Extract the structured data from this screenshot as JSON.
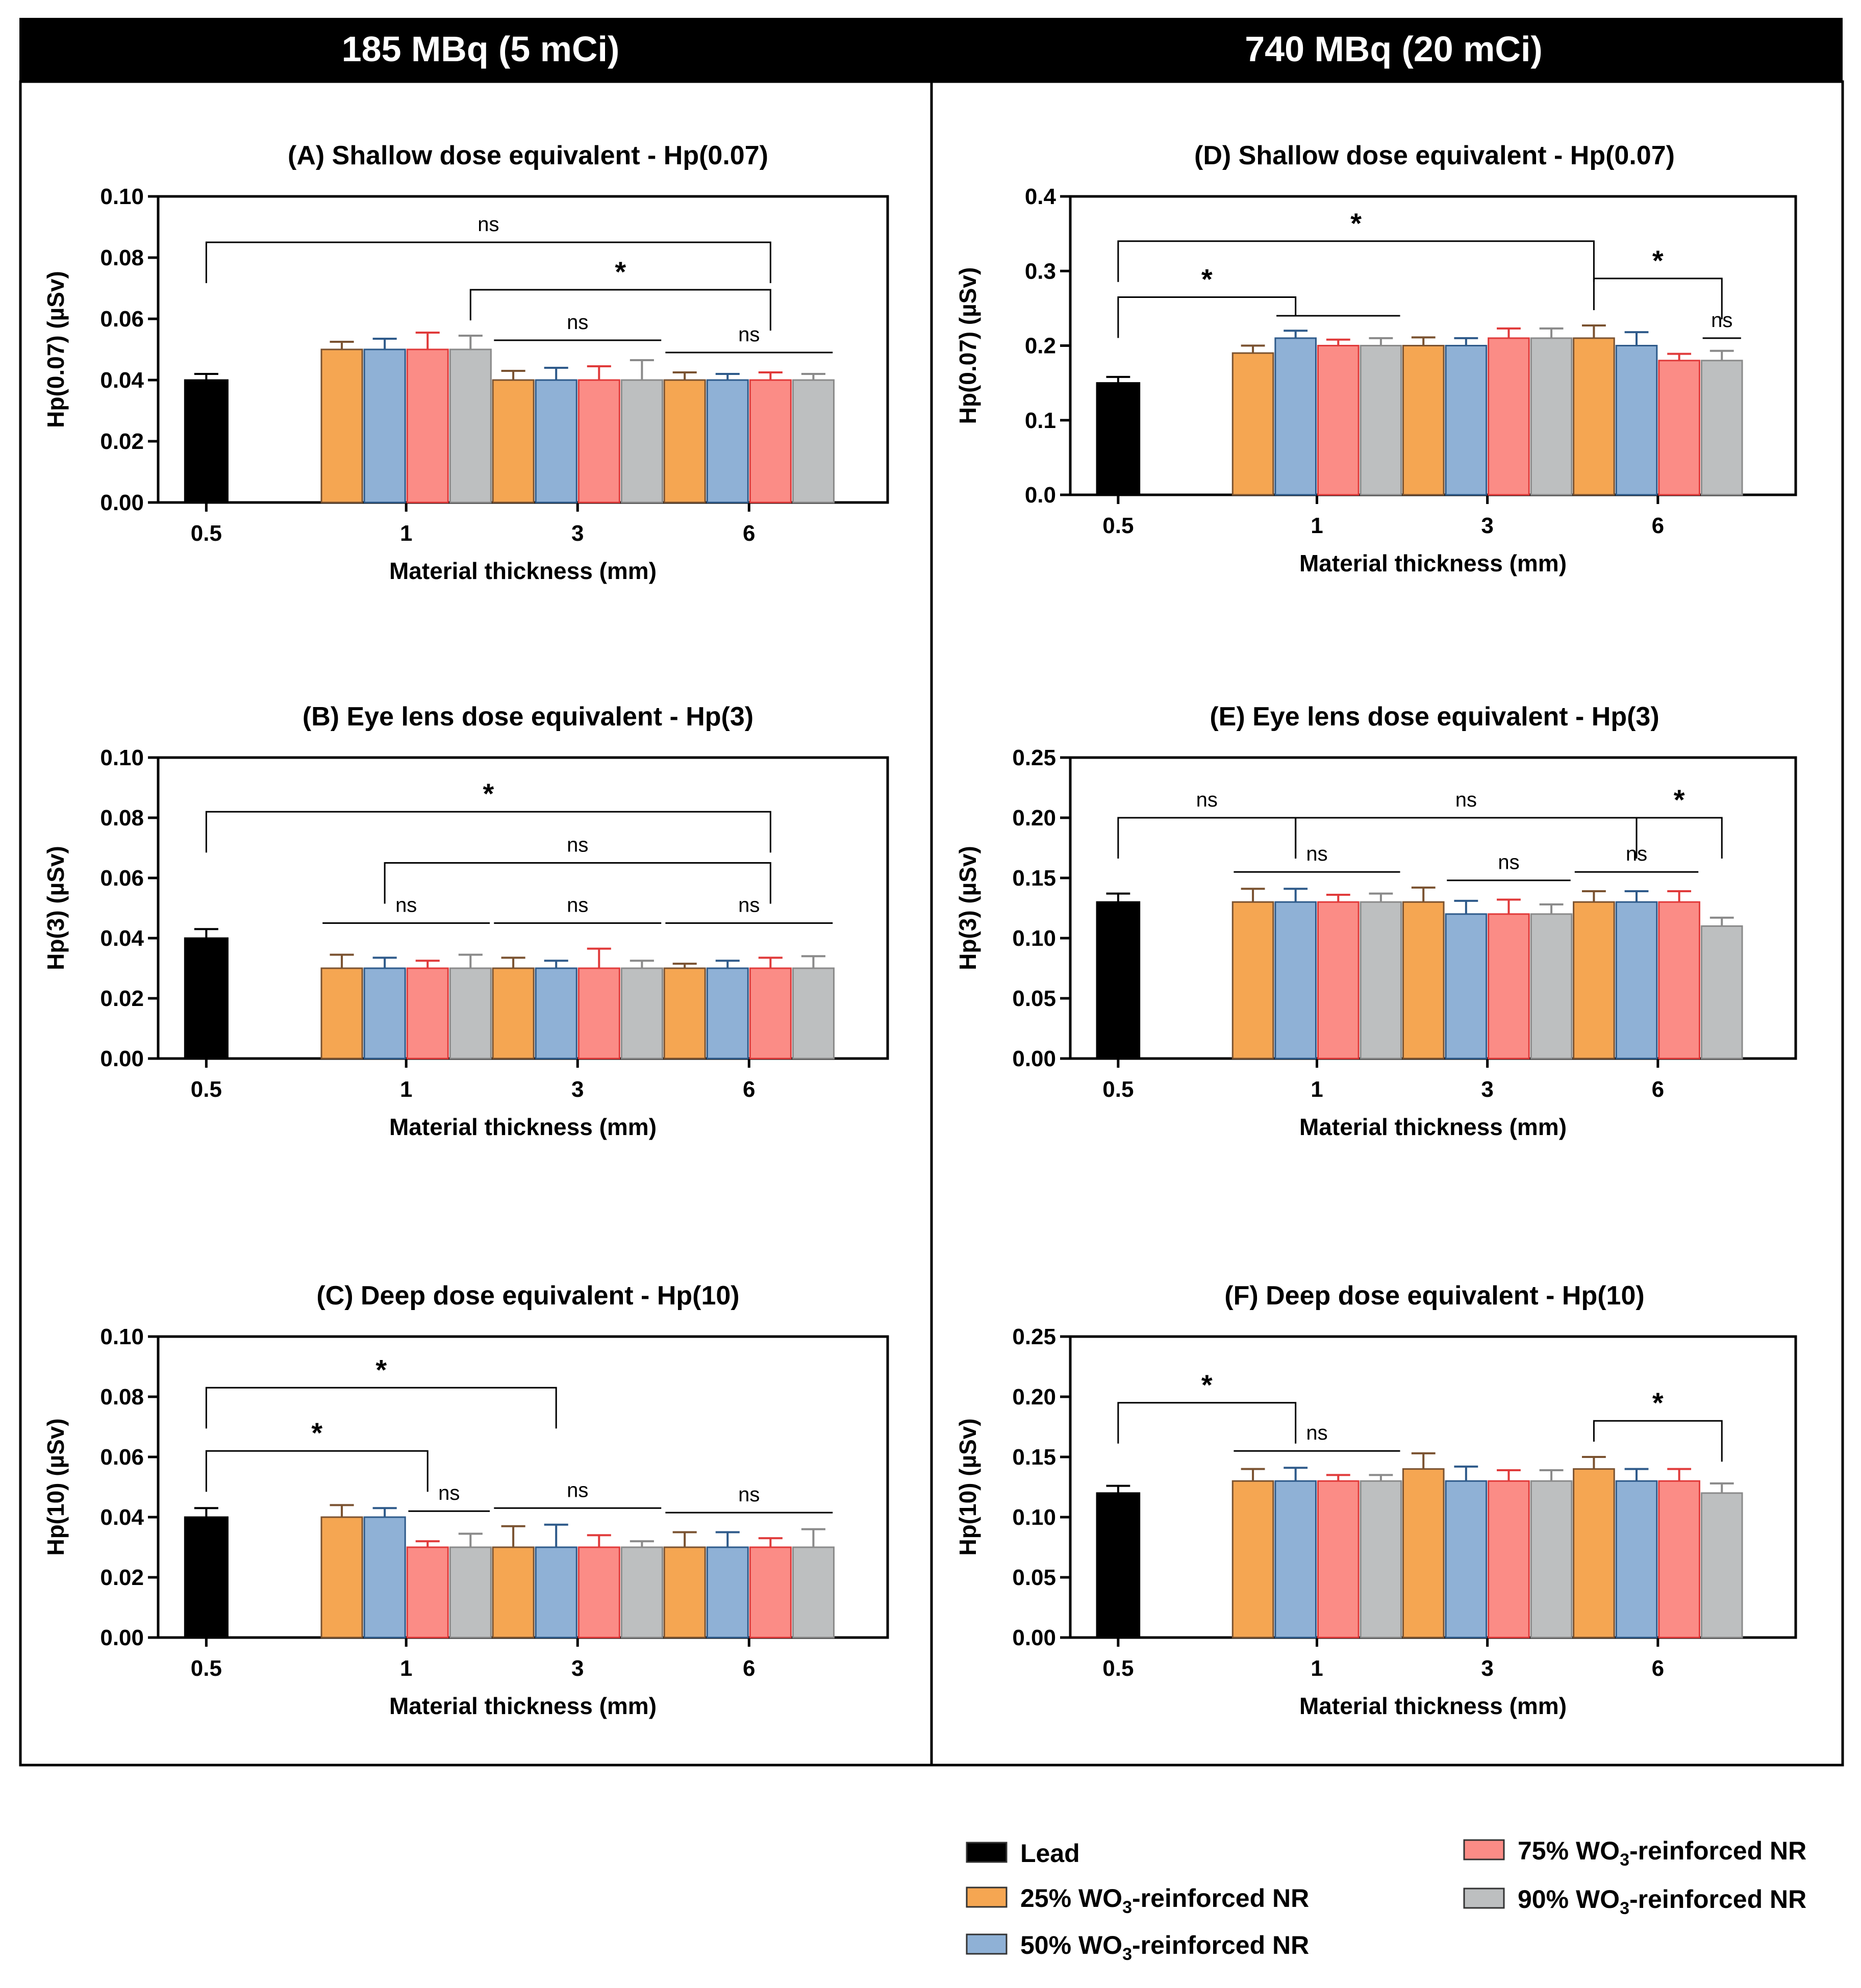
{
  "headers": [
    "185 MBq (5 mCi)",
    "740 MBq (20 mCi)"
  ],
  "colors": {
    "lead": "#000000",
    "wo3_25": "#F5A652",
    "wo3_50": "#8FB1D6",
    "wo3_75": "#FB8C86",
    "wo3_90": "#BDBFC0",
    "err_25": "#7A5230",
    "err_50": "#2E5A8A",
    "err_75": "#E03A3A",
    "err_90": "#8A8A8A"
  },
  "legend": [
    {
      "name": "Lead",
      "pre": "Lead",
      "sub": "",
      "post": "",
      "color": "#000000"
    },
    {
      "name": "25% WO3-reinforced NR",
      "pre": "25% WO",
      "sub": "3",
      "post": "-reinforced NR",
      "color": "#F5A652"
    },
    {
      "name": "50% WO3-reinforced NR",
      "pre": "50% WO",
      "sub": "3",
      "post": "-reinforced NR",
      "color": "#8FB1D6"
    },
    {
      "name": "75% WO3-reinforced NR",
      "pre": "75% WO",
      "sub": "3",
      "post": "-reinforced NR",
      "color": "#FB8C86"
    },
    {
      "name": "90% WO3-reinforced NR",
      "pre": "90% WO",
      "sub": "3",
      "post": "-reinforced NR",
      "color": "#BDBFC0"
    }
  ],
  "chart_data": [
    {
      "id": "A",
      "type": "bar",
      "title": "(A) Shallow dose equivalent - Hp(0.07)",
      "ylabel": "Hp(0.07) (µSv)",
      "xlabel": "Material thickness (mm)",
      "ylim": [
        0,
        0.1
      ],
      "yticks": [
        "0.00",
        "0.02",
        "0.04",
        "0.06",
        "0.08",
        "0.10"
      ],
      "xticks": [
        "0.5",
        "1",
        "3",
        "6"
      ],
      "lead": {
        "value": 0.04,
        "err": 0.002
      },
      "groups": [
        {
          "values": [
            0.05,
            0.05,
            0.05,
            0.05
          ],
          "errs": [
            0.0025,
            0.0035,
            0.0055,
            0.0045
          ]
        },
        {
          "values": [
            0.04,
            0.04,
            0.04,
            0.04
          ],
          "errs": [
            0.003,
            0.004,
            0.0045,
            0.0065
          ]
        },
        {
          "values": [
            0.04,
            0.04,
            0.04,
            0.04
          ],
          "errs": [
            0.0025,
            0.002,
            0.0025,
            0.002
          ]
        }
      ],
      "sig": [
        {
          "label": "ns",
          "from": "lead",
          "to": [
            2,
            2
          ],
          "yval": 0.085
        },
        {
          "label": "*",
          "from": [
            0,
            3
          ],
          "to": [
            2,
            2
          ],
          "yval": 0.0695
        },
        {
          "label": "ns",
          "line": [
            1,
            0,
            1,
            3
          ],
          "yval": 0.053
        },
        {
          "label": "ns",
          "line": [
            2,
            0,
            2,
            3
          ],
          "yval": 0.049
        }
      ]
    },
    {
      "id": "B",
      "type": "bar",
      "title": "(B) Eye lens dose equivalent - Hp(3)",
      "ylabel": "Hp(3) (µSv)",
      "xlabel": "Material thickness (mm)",
      "ylim": [
        0,
        0.1
      ],
      "yticks": [
        "0.00",
        "0.02",
        "0.04",
        "0.06",
        "0.08",
        "0.10"
      ],
      "xticks": [
        "0.5",
        "1",
        "3",
        "6"
      ],
      "lead": {
        "value": 0.04,
        "err": 0.003
      },
      "groups": [
        {
          "values": [
            0.03,
            0.03,
            0.03,
            0.03
          ],
          "errs": [
            0.0045,
            0.0035,
            0.0025,
            0.0045
          ]
        },
        {
          "values": [
            0.03,
            0.03,
            0.03,
            0.03
          ],
          "errs": [
            0.0035,
            0.0025,
            0.0065,
            0.0025
          ]
        },
        {
          "values": [
            0.03,
            0.03,
            0.03,
            0.03
          ],
          "errs": [
            0.0015,
            0.0025,
            0.0035,
            0.004
          ]
        }
      ],
      "sig": [
        {
          "label": "*",
          "from": "lead",
          "to": [
            2,
            2
          ],
          "yval": 0.082
        },
        {
          "label": "ns",
          "from": [
            0,
            1
          ],
          "to": [
            2,
            2
          ],
          "yval": 0.065
        },
        {
          "label": "ns",
          "line": [
            0,
            0,
            0,
            3
          ],
          "yval": 0.045
        },
        {
          "label": "ns",
          "line": [
            1,
            0,
            1,
            3
          ],
          "yval": 0.045
        },
        {
          "label": "ns",
          "line": [
            2,
            0,
            2,
            3
          ],
          "yval": 0.045
        }
      ]
    },
    {
      "id": "C",
      "type": "bar",
      "title": "(C) Deep dose equivalent - Hp(10)",
      "ylabel": "Hp(10) (µSv)",
      "xlabel": "Material thickness (mm)",
      "ylim": [
        0,
        0.1
      ],
      "yticks": [
        "0.00",
        "0.02",
        "0.04",
        "0.06",
        "0.08",
        "0.10"
      ],
      "xticks": [
        "0.5",
        "1",
        "3",
        "6"
      ],
      "lead": {
        "value": 0.04,
        "err": 0.003
      },
      "groups": [
        {
          "values": [
            0.04,
            0.04,
            0.03,
            0.03
          ],
          "errs": [
            0.004,
            0.003,
            0.002,
            0.0045
          ]
        },
        {
          "values": [
            0.03,
            0.03,
            0.03,
            0.03
          ],
          "errs": [
            0.007,
            0.0075,
            0.004,
            0.002
          ]
        },
        {
          "values": [
            0.03,
            0.03,
            0.03,
            0.03
          ],
          "errs": [
            0.005,
            0.005,
            0.003,
            0.006
          ]
        }
      ],
      "sig": [
        {
          "label": "*",
          "from": "lead",
          "to": [
            1,
            1
          ],
          "yval": 0.083
        },
        {
          "label": "*",
          "from": "lead",
          "to": [
            0,
            2
          ],
          "yval": 0.062
        },
        {
          "label": "ns",
          "line": [
            0,
            2,
            0,
            3
          ],
          "yval": 0.042
        },
        {
          "label": "ns",
          "line": [
            1,
            0,
            1,
            3
          ],
          "yval": 0.043
        },
        {
          "label": "ns",
          "line": [
            2,
            0,
            2,
            3
          ],
          "yval": 0.0415
        }
      ]
    },
    {
      "id": "D",
      "type": "bar",
      "title": "(D) Shallow dose equivalent - Hp(0.07)",
      "ylabel": "Hp(0.07) (µSv)",
      "xlabel": "Material thickness (mm)",
      "ylim": [
        0,
        0.4
      ],
      "yticks": [
        "0.0",
        "0.1",
        "0.2",
        "0.3",
        "0.4"
      ],
      "xticks": [
        "0.5",
        "1",
        "3",
        "6"
      ],
      "lead": {
        "value": 0.15,
        "err": 0.008
      },
      "groups": [
        {
          "values": [
            0.19,
            0.21,
            0.2,
            0.2
          ],
          "errs": [
            0.01,
            0.01,
            0.008,
            0.01
          ]
        },
        {
          "values": [
            0.2,
            0.2,
            0.21,
            0.21
          ],
          "errs": [
            0.011,
            0.01,
            0.013,
            0.013
          ]
        },
        {
          "values": [
            0.21,
            0.2,
            0.18,
            0.18
          ],
          "errs": [
            0.017,
            0.018,
            0.009,
            0.013
          ]
        }
      ],
      "sig": [
        {
          "label": "*",
          "from": "lead",
          "to": [
            2,
            0
          ],
          "yval": 0.34
        },
        {
          "label": "*",
          "from": "lead",
          "to": [
            0,
            1
          ],
          "yval": 0.265
        },
        {
          "label": "",
          "line": [
            0,
            1,
            0,
            3
          ],
          "yval": 0.24
        },
        {
          "label": "*",
          "from": [
            2,
            0
          ],
          "to": [
            2,
            3
          ],
          "yval": 0.29
        },
        {
          "label": "ns",
          "line": [
            2,
            3,
            2,
            3
          ],
          "yval": 0.21
        }
      ]
    },
    {
      "id": "E",
      "type": "bar",
      "title": "(E) Eye lens dose equivalent - Hp(3)",
      "ylabel": "Hp(3) (µSv)",
      "xlabel": "Material thickness (mm)",
      "ylim": [
        0,
        0.25
      ],
      "yticks": [
        "0.00",
        "0.05",
        "0.10",
        "0.15",
        "0.20",
        "0.25"
      ],
      "xticks": [
        "0.5",
        "1",
        "3",
        "6"
      ],
      "lead": {
        "value": 0.13,
        "err": 0.007
      },
      "groups": [
        {
          "values": [
            0.13,
            0.13,
            0.13,
            0.13
          ],
          "errs": [
            0.011,
            0.011,
            0.006,
            0.007
          ]
        },
        {
          "values": [
            0.13,
            0.12,
            0.12,
            0.12
          ],
          "errs": [
            0.012,
            0.011,
            0.012,
            0.008
          ]
        },
        {
          "values": [
            0.13,
            0.13,
            0.13,
            0.11
          ],
          "errs": [
            0.009,
            0.009,
            0.009,
            0.007
          ]
        }
      ],
      "sig": [
        {
          "label": "ns",
          "from": "lead",
          "to": [
            0,
            1
          ],
          "yval": 0.2
        },
        {
          "label": "ns",
          "from": [
            0,
            1
          ],
          "to": [
            2,
            1
          ],
          "yval": 0.2
        },
        {
          "label": "*",
          "from": [
            2,
            1
          ],
          "to": [
            2,
            3
          ],
          "yval": 0.2
        },
        {
          "label": "ns",
          "line": [
            0,
            0,
            0,
            3
          ],
          "yval": 0.155
        },
        {
          "label": "ns",
          "line": [
            1,
            1,
            1,
            3
          ],
          "yval": 0.148
        },
        {
          "label": "ns",
          "line": [
            2,
            0,
            2,
            2
          ],
          "yval": 0.155
        }
      ]
    },
    {
      "id": "F",
      "type": "bar",
      "title": "(F) Deep dose equivalent - Hp(10)",
      "ylabel": "Hp(10) (µSv)",
      "xlabel": "Material thickness (mm)",
      "ylim": [
        0,
        0.25
      ],
      "yticks": [
        "0.00",
        "0.05",
        "0.10",
        "0.15",
        "0.20",
        "0.25"
      ],
      "xticks": [
        "0.5",
        "1",
        "3",
        "6"
      ],
      "lead": {
        "value": 0.12,
        "err": 0.006
      },
      "groups": [
        {
          "values": [
            0.13,
            0.13,
            0.13,
            0.13
          ],
          "errs": [
            0.01,
            0.011,
            0.005,
            0.005
          ]
        },
        {
          "values": [
            0.14,
            0.13,
            0.13,
            0.13
          ],
          "errs": [
            0.013,
            0.012,
            0.009,
            0.009
          ]
        },
        {
          "values": [
            0.14,
            0.13,
            0.13,
            0.12
          ],
          "errs": [
            0.01,
            0.01,
            0.01,
            0.008
          ]
        }
      ],
      "sig": [
        {
          "label": "*",
          "from": "lead",
          "to": [
            0,
            1
          ],
          "yval": 0.195
        },
        {
          "label": "ns",
          "line": [
            0,
            0,
            0,
            3
          ],
          "yval": 0.155
        },
        {
          "label": "*",
          "from": [
            2,
            0
          ],
          "to": [
            2,
            3
          ],
          "yval": 0.18
        }
      ]
    }
  ]
}
